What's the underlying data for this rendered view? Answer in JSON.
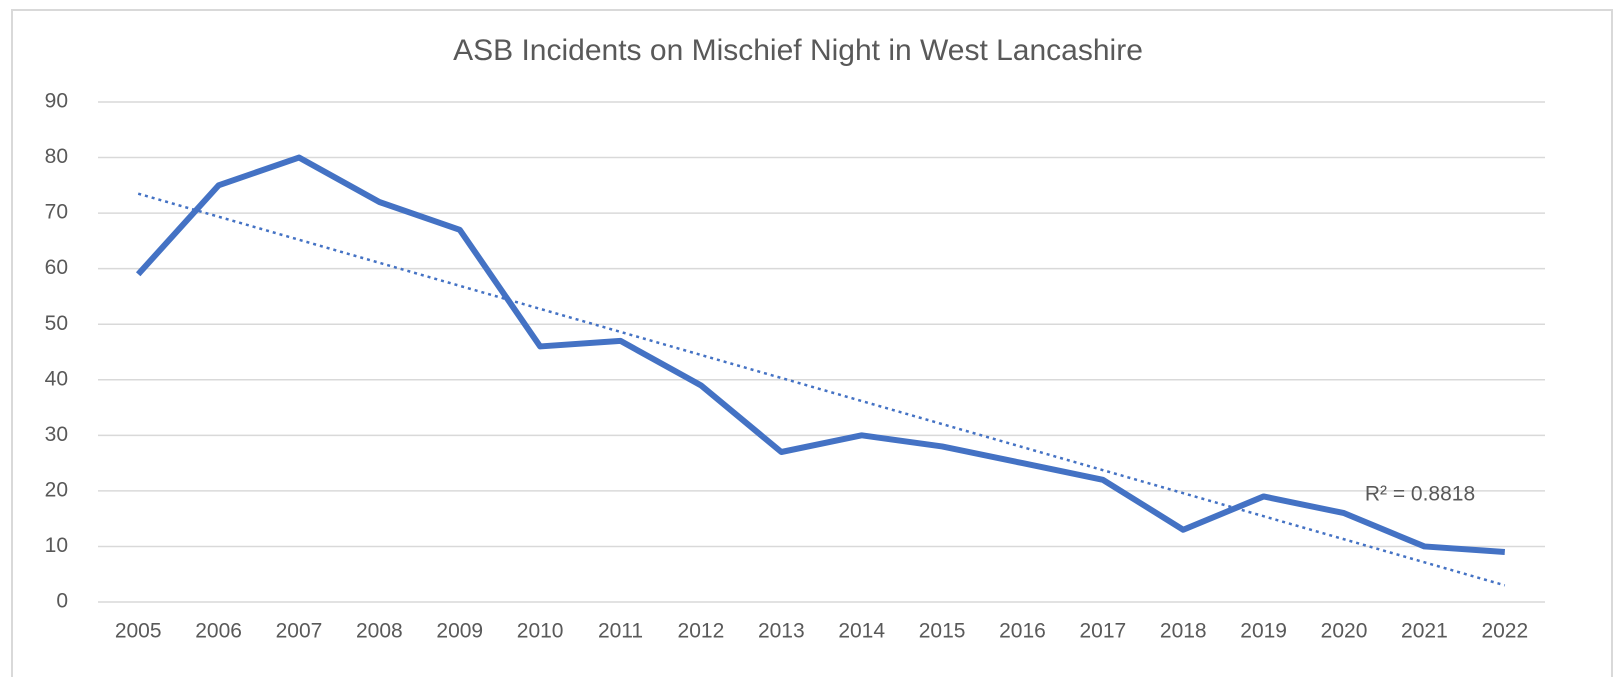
{
  "chart_data": {
    "type": "line",
    "title": "ASB Incidents on Mischief Night in West Lancashire",
    "categories": [
      "2005",
      "2006",
      "2007",
      "2008",
      "2009",
      "2010",
      "2011",
      "2012",
      "2013",
      "2014",
      "2015",
      "2016",
      "2017",
      "2018",
      "2019",
      "2020",
      "2021",
      "2022"
    ],
    "values": [
      59,
      75,
      80,
      72,
      67,
      46,
      47,
      39,
      27,
      30,
      28,
      25,
      22,
      13,
      19,
      16,
      10,
      9
    ],
    "color": "#4472c4",
    "trendline": {
      "start": 73.5,
      "end": 3,
      "label": "R² = 0.8818"
    },
    "ylim": [
      0,
      90
    ],
    "yticks": [
      0,
      10,
      20,
      30,
      40,
      50,
      60,
      70,
      80,
      90
    ],
    "grid": true
  }
}
